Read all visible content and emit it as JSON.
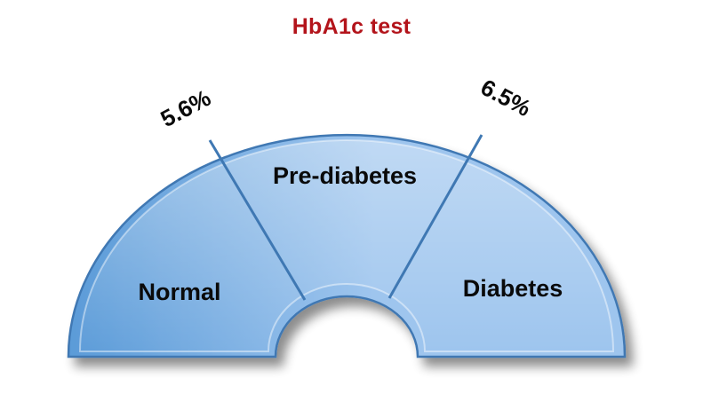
{
  "diagram": {
    "title": "HbA1c test",
    "colors": {
      "title": "#b3141b",
      "fill_light": "#9ec5ee",
      "fill_dark": "#5b9bd8",
      "edge": "#3f78b3"
    },
    "segments": [
      {
        "label": "Normal"
      },
      {
        "label": "Pre-diabetes"
      },
      {
        "label": "Diabetes"
      }
    ],
    "thresholds": [
      {
        "label": "5.6%"
      },
      {
        "label": "6.5%"
      }
    ]
  }
}
